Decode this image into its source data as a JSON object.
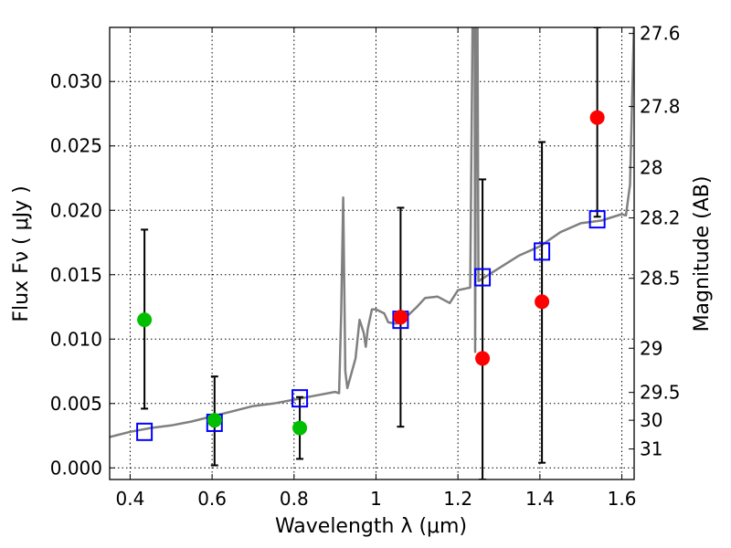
{
  "chart_data": {
    "type": "scatter",
    "xlabel": "Wavelength  λ (μm)",
    "ylabel": "Flux  Fν  ( μJy )",
    "ylabel_right": "Magnitude (AB)",
    "xlim": [
      0.35,
      1.63
    ],
    "ylim": [
      -0.0009,
      0.0342
    ],
    "grid": true,
    "x_ticks": [
      0.4,
      0.6,
      0.8,
      1.0,
      1.2,
      1.4,
      1.6
    ],
    "x_tick_labels": [
      "0.4",
      "0.6",
      "0.8",
      "1",
      "1.2",
      "1.4",
      "1.6"
    ],
    "y_ticks": [
      0.0,
      0.005,
      0.01,
      0.015,
      0.02,
      0.025,
      0.03
    ],
    "y_tick_labels": [
      "0.000",
      "0.005",
      "0.010",
      "0.015",
      "0.020",
      "0.025",
      "0.030"
    ],
    "right_axis": {
      "ticks": [
        {
          "label": "27.6",
          "flux": 0.03373
        },
        {
          "label": "27.8",
          "flux": 0.02806
        },
        {
          "label": "28",
          "flux": 0.02333
        },
        {
          "label": "28.2",
          "flux": 0.01941
        },
        {
          "label": "28.5",
          "flux": 0.01472
        },
        {
          "label": "29",
          "flux": 0.00929
        },
        {
          "label": "29.5",
          "flux": 0.00586
        },
        {
          "label": "30",
          "flux": 0.0037
        },
        {
          "label": "31",
          "flux": 0.00147
        }
      ]
    },
    "series": [
      {
        "kind": "spectrum_line",
        "color": "#808080",
        "x": [
          0.35,
          0.4,
          0.45,
          0.5,
          0.55,
          0.6,
          0.65,
          0.7,
          0.75,
          0.8,
          0.85,
          0.9,
          0.91,
          0.915,
          0.92,
          0.925,
          0.93,
          0.95,
          0.96,
          0.97,
          0.975,
          0.98,
          0.99,
          1.0,
          1.02,
          1.03,
          1.05,
          1.08,
          1.1,
          1.12,
          1.15,
          1.18,
          1.2,
          1.23,
          1.24,
          1.242,
          1.246,
          1.25,
          1.3,
          1.35,
          1.4,
          1.45,
          1.5,
          1.55,
          1.6,
          1.61,
          1.62,
          1.63
        ],
        "y": [
          0.0024,
          0.0028,
          0.0031,
          0.0033,
          0.0036,
          0.004,
          0.0044,
          0.0048,
          0.005,
          0.0053,
          0.0056,
          0.0059,
          0.0058,
          0.012,
          0.021,
          0.0075,
          0.0062,
          0.0085,
          0.0115,
          0.0105,
          0.0094,
          0.0108,
          0.0123,
          0.0123,
          0.012,
          0.0113,
          0.0112,
          0.0119,
          0.0125,
          0.0132,
          0.0133,
          0.0128,
          0.0138,
          0.014,
          0.05,
          0.009,
          0.05,
          0.0145,
          0.0155,
          0.0165,
          0.0172,
          0.0183,
          0.019,
          0.0192,
          0.0197,
          0.0196,
          0.022,
          0.035
        ]
      },
      {
        "kind": "model_bands",
        "marker": "open square",
        "color": "#0000ff",
        "x": [
          0.435,
          0.606,
          0.814,
          1.06,
          1.26,
          1.405,
          1.54
        ],
        "y": [
          0.0028,
          0.0035,
          0.0054,
          0.0115,
          0.0148,
          0.0168,
          0.0193
        ]
      },
      {
        "kind": "detections",
        "marker": "filled circle",
        "color": "#00bf00",
        "x": [
          0.435,
          0.606,
          0.814
        ],
        "y": [
          0.0115,
          0.0037,
          0.0031
        ],
        "yerr_low": [
          0.0046,
          0.0002,
          0.0007
        ],
        "yerr_high": [
          0.0185,
          0.0071,
          0.0055
        ]
      },
      {
        "kind": "upper_limits",
        "marker": "filled circle",
        "color": "#ff0000",
        "x": [
          1.06,
          1.26,
          1.405,
          1.54
        ],
        "y": [
          0.0117,
          0.0085,
          0.0129,
          0.0272
        ],
        "yerr_low": [
          0.0032,
          -0.0009,
          0.0004,
          0.0195
        ],
        "yerr_high": [
          0.0202,
          0.0224,
          0.0253,
          0.0342
        ]
      }
    ]
  }
}
